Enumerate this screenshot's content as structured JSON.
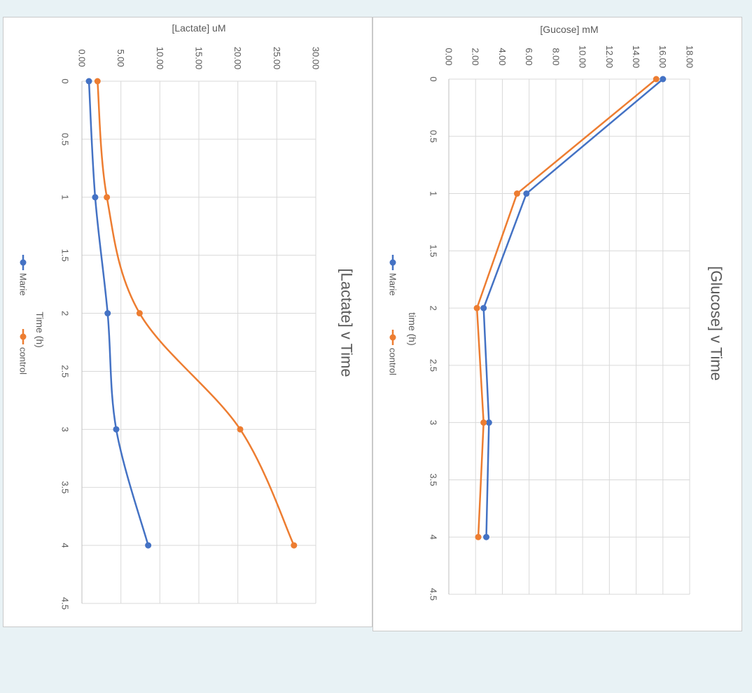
{
  "chart_data": [
    {
      "type": "line",
      "title": "[Glucose] v Time",
      "xlabel": "time (h)",
      "ylabel": "[Gucose] mM",
      "xlim": [
        0,
        4.5
      ],
      "ylim": [
        0,
        18
      ],
      "x_ticks": [
        "0",
        "0.5",
        "1",
        "1.5",
        "2",
        "2.5",
        "3",
        "3.5",
        "4",
        "4.5"
      ],
      "y_ticks": [
        "0.00",
        "2.00",
        "4.00",
        "6.00",
        "8.00",
        "10.00",
        "12.00",
        "14.00",
        "16.00",
        "18.00"
      ],
      "grid": true,
      "smooth": false,
      "legend_position": "bottom",
      "orientation": "rotated 90 degrees clockwise",
      "series": [
        {
          "name": "Marie",
          "color": "#4472c4",
          "x": [
            0,
            1,
            2,
            3,
            4
          ],
          "y": [
            16.0,
            5.8,
            2.6,
            3.0,
            2.8
          ]
        },
        {
          "name": "control",
          "color": "#ed7d31",
          "x": [
            0,
            1,
            2,
            3,
            4
          ],
          "y": [
            15.5,
            5.1,
            2.1,
            2.6,
            2.2
          ]
        }
      ]
    },
    {
      "type": "line",
      "title": "[Lactate] v Time",
      "xlabel": "Time (h)",
      "ylabel": "[Lactate] uM",
      "xlim": [
        0,
        4.5
      ],
      "ylim": [
        0,
        30
      ],
      "x_ticks": [
        "0",
        "0.5",
        "1",
        "1.5",
        "2",
        "2.5",
        "3",
        "3.5",
        "4",
        "4.5"
      ],
      "y_ticks": [
        "0.00",
        "5.00",
        "10.00",
        "15.00",
        "20.00",
        "25.00",
        "30.00"
      ],
      "grid": true,
      "smooth": true,
      "legend_position": "bottom",
      "orientation": "rotated 90 degrees clockwise",
      "series": [
        {
          "name": "Marie",
          "color": "#4472c4",
          "x": [
            0,
            1,
            2,
            3,
            4
          ],
          "y": [
            0.9,
            1.7,
            3.3,
            4.4,
            8.5
          ]
        },
        {
          "name": "control",
          "color": "#ed7d31",
          "x": [
            0,
            1,
            2,
            3,
            4
          ],
          "y": [
            2.0,
            3.2,
            7.4,
            20.3,
            27.2
          ]
        }
      ]
    }
  ]
}
